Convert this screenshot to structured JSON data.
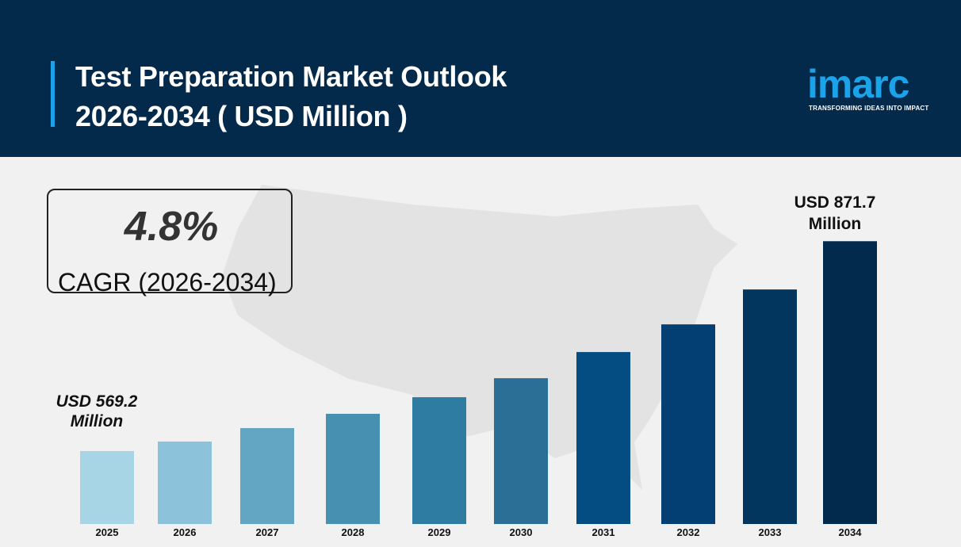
{
  "header": {
    "title_line1": "Test Preparation Market Outlook",
    "title_line2": "2026-2034 ( USD Million )"
  },
  "logo": {
    "name": "imarc",
    "tagline": "TRANSFORMING IDEAS INTO IMPACT"
  },
  "cagr": {
    "value": "4.8%",
    "label": "CAGR (2026-2034)"
  },
  "chart_data": {
    "type": "bar",
    "title": "Test Preparation Market Outlook 2026-2034 ( USD Million )",
    "categories": [
      "2025",
      "2026",
      "2027",
      "2028",
      "2029",
      "2030",
      "2031",
      "2032",
      "2033",
      "2034"
    ],
    "values": [
      569.2,
      582.9,
      602.3,
      622.9,
      646.8,
      674.2,
      711.9,
      751.8,
      802.1,
      871.7
    ],
    "colors": [
      "#a8d5e6",
      "#8cc2da",
      "#63a6c4",
      "#4890b1",
      "#2e7ca1",
      "#2b6f97",
      "#044d82",
      "#033f72",
      "#03365f",
      "#022a4d"
    ],
    "ylim": [
      464,
      872
    ],
    "annotations": {
      "first_line1": "USD 569.2",
      "first_line2": "Million",
      "last_line1": "USD 871.7",
      "last_line2": "Million"
    },
    "xlabel": "",
    "ylabel": ""
  }
}
